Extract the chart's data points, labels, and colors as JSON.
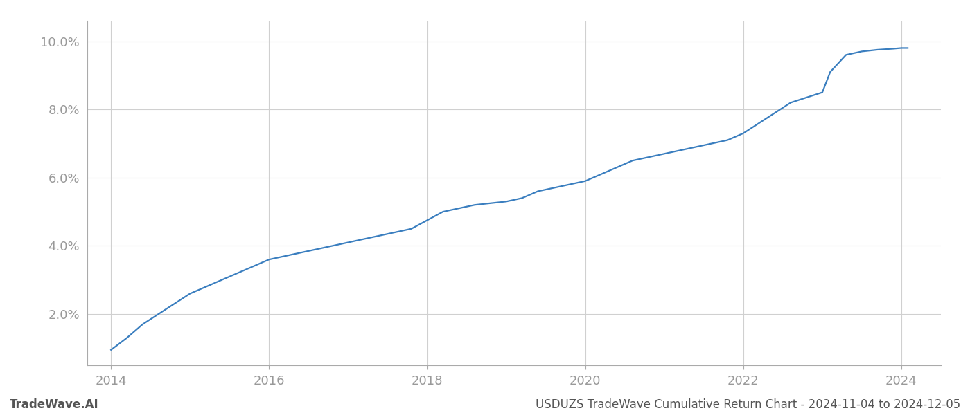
{
  "title": "USDUZS TradeWave Cumulative Return Chart - 2024-11-04 to 2024-12-05",
  "watermark": "TradeWave.AI",
  "line_color": "#3a7ebf",
  "background_color": "#ffffff",
  "grid_color": "#d0d0d0",
  "x_years": [
    2014.0,
    2014.2,
    2014.4,
    2014.6,
    2014.8,
    2015.0,
    2015.2,
    2015.4,
    2015.6,
    2015.8,
    2016.0,
    2016.2,
    2016.4,
    2016.6,
    2016.8,
    2017.0,
    2017.2,
    2017.4,
    2017.6,
    2017.8,
    2018.0,
    2018.2,
    2018.4,
    2018.6,
    2018.8,
    2019.0,
    2019.2,
    2019.4,
    2019.6,
    2019.8,
    2020.0,
    2020.2,
    2020.4,
    2020.6,
    2020.8,
    2021.0,
    2021.2,
    2021.4,
    2021.6,
    2021.8,
    2022.0,
    2022.2,
    2022.4,
    2022.6,
    2022.8,
    2023.0,
    2023.05,
    2023.1,
    2023.3,
    2023.5,
    2023.7,
    2023.9,
    2024.0,
    2024.08
  ],
  "y_values": [
    0.0095,
    0.013,
    0.017,
    0.02,
    0.023,
    0.026,
    0.028,
    0.03,
    0.032,
    0.034,
    0.036,
    0.037,
    0.038,
    0.039,
    0.04,
    0.041,
    0.042,
    0.043,
    0.044,
    0.045,
    0.0475,
    0.05,
    0.051,
    0.052,
    0.0525,
    0.053,
    0.054,
    0.056,
    0.057,
    0.058,
    0.059,
    0.061,
    0.063,
    0.065,
    0.066,
    0.067,
    0.068,
    0.069,
    0.07,
    0.071,
    0.073,
    0.076,
    0.079,
    0.082,
    0.0835,
    0.085,
    0.088,
    0.091,
    0.096,
    0.097,
    0.0975,
    0.0978,
    0.098,
    0.098
  ],
  "xlim": [
    2013.7,
    2024.5
  ],
  "ylim": [
    0.005,
    0.106
  ],
  "yticks": [
    0.02,
    0.04,
    0.06,
    0.08,
    0.1
  ],
  "xticks": [
    2014,
    2016,
    2018,
    2020,
    2022,
    2024
  ],
  "tick_label_color": "#999999",
  "tick_fontsize": 13,
  "footer_fontsize": 12,
  "line_width": 1.6
}
